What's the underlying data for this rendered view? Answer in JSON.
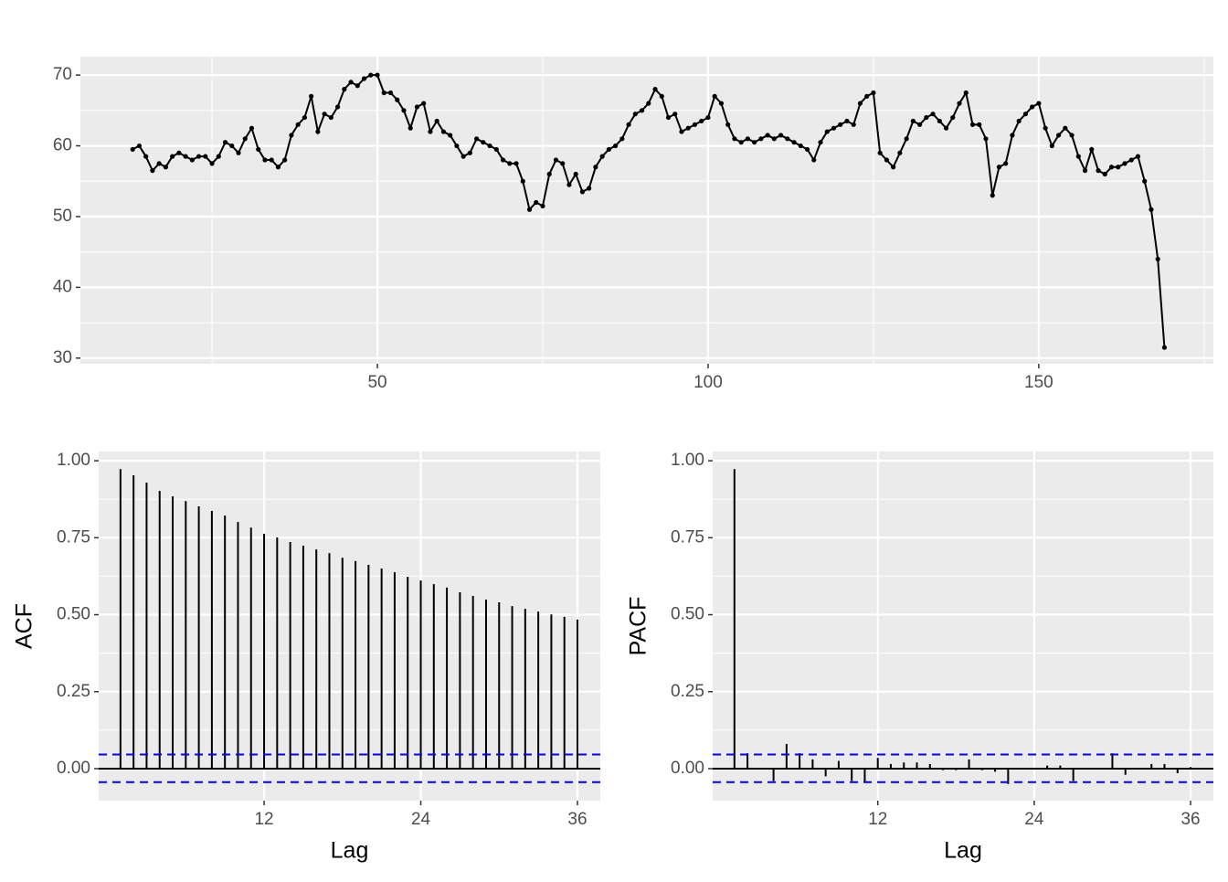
{
  "chart_data": [
    {
      "type": "line",
      "color": "#000000",
      "markers": true,
      "grid": true,
      "x": [
        13,
        14,
        15,
        16,
        17,
        18,
        19,
        20,
        21,
        22,
        23,
        24,
        25,
        26,
        27,
        28,
        29,
        30,
        31,
        32,
        33,
        34,
        35,
        36,
        37,
        38,
        39,
        40,
        41,
        42,
        43,
        44,
        45,
        46,
        47,
        48,
        49,
        50,
        51,
        52,
        53,
        54,
        55,
        56,
        57,
        58,
        59,
        60,
        61,
        62,
        63,
        64,
        65,
        66,
        67,
        68,
        69,
        70,
        71,
        72,
        73,
        74,
        75,
        76,
        77,
        78,
        79,
        80,
        81,
        82,
        83,
        84,
        85,
        86,
        87,
        88,
        89,
        90,
        91,
        92,
        93,
        94,
        95,
        96,
        97,
        98,
        99,
        100,
        101,
        102,
        103,
        104,
        105,
        106,
        107,
        108,
        109,
        110,
        111,
        112,
        113,
        114,
        115,
        116,
        117,
        118,
        119,
        120,
        121,
        122,
        123,
        124,
        125,
        126,
        127,
        128,
        129,
        130,
        131,
        132,
        133,
        134,
        135,
        136,
        137,
        138,
        139,
        140,
        141,
        142,
        143,
        144,
        145,
        146,
        147,
        148,
        149,
        150,
        151,
        152,
        153,
        154,
        155,
        156,
        157,
        158,
        159,
        160,
        161,
        162,
        163,
        164,
        165,
        166,
        167,
        168,
        169
      ],
      "values": [
        59.5,
        60,
        58.5,
        56.5,
        57.5,
        57,
        58.5,
        59,
        58.5,
        58,
        58.5,
        58.5,
        57.5,
        58.5,
        60.5,
        60,
        59,
        61,
        62.5,
        59.5,
        58,
        58,
        57,
        58,
        61.5,
        63,
        64,
        67,
        62,
        64.5,
        64,
        65.5,
        68,
        69,
        68.5,
        69.5,
        70,
        70,
        67.5,
        67.5,
        66.5,
        65,
        62.5,
        65.5,
        66,
        62,
        63.5,
        62,
        61.5,
        60,
        58.5,
        59,
        61,
        60.5,
        60,
        59.5,
        58,
        57.5,
        57.5,
        55,
        51,
        52,
        51.5,
        56,
        58,
        57.5,
        54.5,
        56,
        53.5,
        54,
        57,
        58.5,
        59.5,
        60,
        61,
        63,
        64.5,
        65,
        66,
        68,
        67,
        64,
        64.5,
        62,
        62.5,
        63,
        63.5,
        64,
        67,
        66,
        63,
        61,
        60.5,
        61,
        60.5,
        61,
        61.5,
        61,
        61.5,
        61,
        60.5,
        60,
        59.5,
        58,
        60.5,
        62,
        62.5,
        63,
        63.5,
        63,
        66,
        67,
        67.5,
        59,
        58,
        57,
        59,
        61,
        63.5,
        63,
        64,
        64.5,
        63.5,
        62.5,
        64,
        66,
        67.5,
        63,
        63,
        61,
        53,
        57,
        57.5,
        61.5,
        63.5,
        64.5,
        65.5,
        66,
        62.5,
        60,
        61.5,
        62.5,
        61.5,
        58.5,
        56.5,
        59.5,
        56.5,
        56,
        57,
        57,
        57.5,
        58,
        58.5,
        55,
        51,
        44,
        31.5
      ],
      "xlim": [
        5.1,
        176.4
      ],
      "ylim": [
        29.2,
        72.6
      ],
      "xticks": [
        50,
        100,
        150
      ],
      "yticks": [
        30,
        40,
        50,
        60,
        70
      ],
      "xminor": [
        25,
        75,
        125,
        175
      ],
      "yminor": [
        35,
        45,
        55,
        65
      ]
    },
    {
      "type": "stem",
      "color": "#000000",
      "grid": true,
      "y_label": "ACF",
      "x_label": "Lag",
      "x": [
        1,
        2,
        3,
        4,
        5,
        6,
        7,
        8,
        9,
        10,
        11,
        12,
        13,
        14,
        15,
        16,
        17,
        18,
        19,
        20,
        21,
        22,
        23,
        24,
        25,
        26,
        27,
        28,
        29,
        30,
        31,
        32,
        33,
        34,
        35,
        36
      ],
      "values": [
        0.973,
        0.953,
        0.929,
        0.902,
        0.884,
        0.869,
        0.852,
        0.837,
        0.822,
        0.801,
        0.783,
        0.763,
        0.751,
        0.736,
        0.724,
        0.712,
        0.7,
        0.685,
        0.674,
        0.662,
        0.65,
        0.638,
        0.623,
        0.611,
        0.599,
        0.588,
        0.573,
        0.561,
        0.549,
        0.54,
        0.528,
        0.519,
        0.51,
        0.501,
        0.493,
        0.484
      ],
      "ci_lines": [
        0.046,
        -0.044
      ],
      "ci_color": "#0000ff",
      "xlim": [
        -0.67,
        37.75
      ],
      "ylim": [
        -0.104,
        1.03
      ],
      "xticks": [
        12,
        24,
        36
      ],
      "yticks": [
        {
          "value": 0,
          "label": "0.00"
        },
        0.25,
        {
          "value": 0.5,
          "label": "0.50"
        },
        0.75,
        {
          "value": 1,
          "label": "1.00"
        }
      ],
      "yminor": [
        0.125,
        0.375,
        0.625,
        0.875
      ]
    },
    {
      "type": "stem",
      "color": "#000000",
      "grid": true,
      "y_label": "PACF",
      "x_label": "Lag",
      "x": [
        1,
        2,
        3,
        4,
        5,
        6,
        7,
        8,
        9,
        10,
        11,
        12,
        13,
        14,
        15,
        16,
        17,
        18,
        19,
        20,
        21,
        22,
        23,
        24,
        25,
        26,
        27,
        28,
        29,
        30,
        31,
        32,
        33,
        34,
        35,
        36
      ],
      "values": [
        0.973,
        0.05,
        0,
        -0.04,
        0.08,
        0.05,
        0.03,
        -0.025,
        0.025,
        -0.04,
        -0.045,
        0.035,
        0.015,
        0.02,
        0.02,
        0.015,
        -0.005,
        -0.005,
        0.03,
        -0.005,
        -0.01,
        -0.05,
        0,
        0,
        0.01,
        0.01,
        -0.04,
        0,
        0,
        0.05,
        -0.02,
        0,
        0.015,
        0.015,
        -0.015,
        0.005
      ],
      "ci_lines": [
        0.046,
        -0.044
      ],
      "ci_color": "#0000ff",
      "xlim": [
        -0.67,
        37.75
      ],
      "ylim": [
        -0.104,
        1.03
      ],
      "xticks": [
        12,
        24,
        36
      ],
      "yticks": [
        {
          "value": 0,
          "label": "0.00"
        },
        0.25,
        {
          "value": 0.5,
          "label": "0.50"
        },
        0.75,
        {
          "value": 1,
          "label": "1.00"
        }
      ],
      "yminor": [
        0.125,
        0.375,
        0.625,
        0.875
      ]
    }
  ]
}
